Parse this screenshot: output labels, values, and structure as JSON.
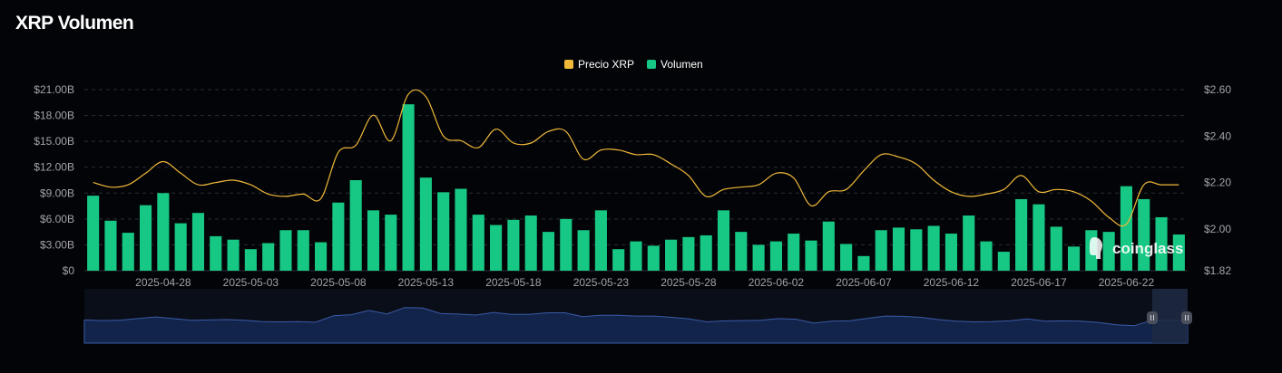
{
  "page": {
    "title": "XRP Volumen"
  },
  "legend": [
    {
      "label": "Precio XRP",
      "color": "#f0b93a"
    },
    {
      "label": "Volumen",
      "color": "#17c784"
    }
  ],
  "watermark": "coinglass",
  "chart_data": {
    "type": "bar",
    "title": "XRP Volumen",
    "legend_position": "top-center",
    "grid": true,
    "x_tick_labels": [
      "2025-04-28",
      "2025-05-03",
      "2025-05-08",
      "2025-05-13",
      "2025-05-18",
      "2025-05-23",
      "2025-05-28",
      "2025-06-02",
      "2025-06-07",
      "2025-06-12",
      "2025-06-17",
      "2025-06-22"
    ],
    "y_left_ticks": [
      "$0",
      "$3.00B",
      "$6.00B",
      "$9.00B",
      "$12.00B",
      "$15.00B",
      "$18.00B",
      "$21.00B"
    ],
    "y_right_ticks": [
      "$1.82",
      "$2.00",
      "$2.20",
      "$2.40",
      "$2.60"
    ],
    "y_left_range": [
      0,
      21
    ],
    "y_right_range": [
      1.82,
      2.6
    ],
    "categories": [
      "2025-04-24",
      "2025-04-25",
      "2025-04-26",
      "2025-04-27",
      "2025-04-28",
      "2025-04-29",
      "2025-04-30",
      "2025-05-01",
      "2025-05-02",
      "2025-05-03",
      "2025-05-04",
      "2025-05-05",
      "2025-05-06",
      "2025-05-07",
      "2025-05-08",
      "2025-05-09",
      "2025-05-10",
      "2025-05-11",
      "2025-05-12",
      "2025-05-13",
      "2025-05-14",
      "2025-05-15",
      "2025-05-16",
      "2025-05-17",
      "2025-05-18",
      "2025-05-19",
      "2025-05-20",
      "2025-05-21",
      "2025-05-22",
      "2025-05-23",
      "2025-05-24",
      "2025-05-25",
      "2025-05-26",
      "2025-05-27",
      "2025-05-28",
      "2025-05-29",
      "2025-05-30",
      "2025-05-31",
      "2025-06-01",
      "2025-06-02",
      "2025-06-03",
      "2025-06-04",
      "2025-06-05",
      "2025-06-06",
      "2025-06-07",
      "2025-06-08",
      "2025-06-09",
      "2025-06-10",
      "2025-06-11",
      "2025-06-12",
      "2025-06-13",
      "2025-06-14",
      "2025-06-15",
      "2025-06-16",
      "2025-06-17",
      "2025-06-18",
      "2025-06-19",
      "2025-06-20",
      "2025-06-21",
      "2025-06-22",
      "2025-06-23",
      "2025-06-24",
      "2025-06-25"
    ],
    "series": [
      {
        "name": "Volumen",
        "axis": "left",
        "unit": "B USD",
        "color": "#17c784",
        "values": [
          8.7,
          5.8,
          4.4,
          7.6,
          9.0,
          5.5,
          6.7,
          4.0,
          3.6,
          2.5,
          3.2,
          4.7,
          4.7,
          3.3,
          7.9,
          10.5,
          7.0,
          6.5,
          19.3,
          10.8,
          9.1,
          9.5,
          6.5,
          5.3,
          5.9,
          6.4,
          4.5,
          6.0,
          4.7,
          7.0,
          2.5,
          3.4,
          2.9,
          3.6,
          3.9,
          4.1,
          7.0,
          4.5,
          3.0,
          3.4,
          4.3,
          3.5,
          5.7,
          3.1,
          1.7,
          4.7,
          5.0,
          4.8,
          5.2,
          4.3,
          6.4,
          3.4,
          2.2,
          8.3,
          7.7,
          5.1,
          2.8,
          4.7,
          4.5,
          9.8,
          8.3,
          6.2,
          4.2
        ]
      },
      {
        "name": "Precio XRP",
        "axis": "right",
        "unit": "USD",
        "color": "#f0b93a",
        "values": [
          2.2,
          2.18,
          2.19,
          2.24,
          2.29,
          2.24,
          2.19,
          2.2,
          2.21,
          2.19,
          2.15,
          2.14,
          2.15,
          2.13,
          2.33,
          2.36,
          2.49,
          2.38,
          2.58,
          2.57,
          2.4,
          2.38,
          2.35,
          2.43,
          2.37,
          2.37,
          2.42,
          2.42,
          2.3,
          2.34,
          2.34,
          2.32,
          2.32,
          2.28,
          2.23,
          2.14,
          2.17,
          2.18,
          2.19,
          2.24,
          2.22,
          2.1,
          2.16,
          2.17,
          2.25,
          2.32,
          2.31,
          2.28,
          2.21,
          2.16,
          2.14,
          2.15,
          2.17,
          2.23,
          2.16,
          2.17,
          2.16,
          2.12,
          2.05,
          2.02,
          2.19,
          2.19,
          2.19
        ]
      }
    ]
  }
}
